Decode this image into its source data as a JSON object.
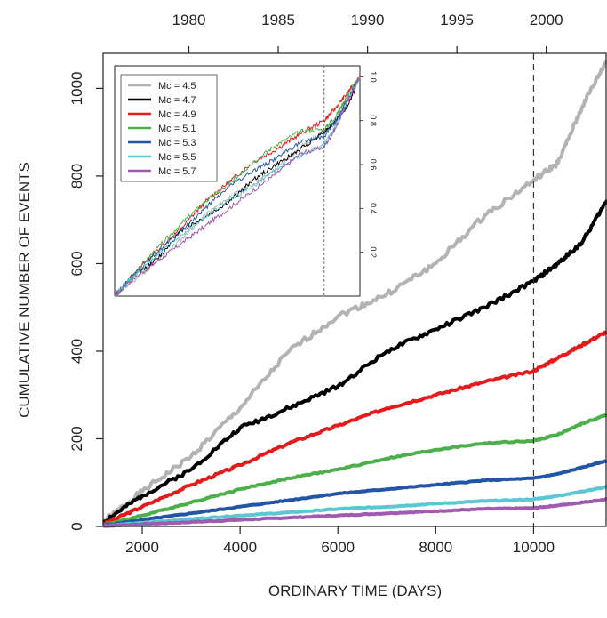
{
  "chart_data": {
    "type": "line",
    "title": "",
    "xlabel": "ORDINARY TIME (DAYS)",
    "ylabel": "CUMULATIVE NUMBER OF EVENTS",
    "xlim": [
      1200,
      11500
    ],
    "ylim": [
      0,
      1080
    ],
    "x_ticks": [
      2000,
      4000,
      6000,
      8000,
      10000
    ],
    "y_ticks": [
      0,
      200,
      400,
      600,
      800,
      1000
    ],
    "top_axis": {
      "xlim": [
        1975.2,
        2003.4
      ],
      "ticks": [
        1980,
        1985,
        1990,
        1995,
        2000
      ]
    },
    "reference_line_x": 10000,
    "legend_position": "inside inset, top-left",
    "series": [
      {
        "name": "Mc = 4.5",
        "color": "#b3b3b3",
        "x": [
          1200,
          2000,
          3000,
          4000,
          5000,
          6000,
          7000,
          8000,
          9000,
          10000,
          10500,
          11000,
          11500
        ],
        "values": [
          10,
          80,
          160,
          270,
          400,
          480,
          530,
          600,
          710,
          790,
          830,
          960,
          1065
        ]
      },
      {
        "name": "Mc = 4.7",
        "color": "#000000",
        "x": [
          1200,
          2000,
          3000,
          4000,
          5000,
          6000,
          7000,
          8000,
          9000,
          10000,
          10500,
          11000,
          11500
        ],
        "values": [
          10,
          70,
          130,
          225,
          270,
          320,
          400,
          450,
          500,
          560,
          600,
          650,
          745
        ]
      },
      {
        "name": "Mc = 4.9",
        "color": "#e41a1c",
        "x": [
          1200,
          2000,
          3000,
          4000,
          5000,
          6000,
          7000,
          8000,
          9000,
          10000,
          10500,
          11000,
          11500
        ],
        "values": [
          5,
          45,
          95,
          140,
          190,
          230,
          270,
          300,
          330,
          355,
          385,
          415,
          445
        ]
      },
      {
        "name": "Mc = 5.1",
        "color": "#4daf4a",
        "x": [
          1200,
          2000,
          3000,
          4000,
          5000,
          6000,
          7000,
          8000,
          9000,
          10000,
          10500,
          11000,
          11500
        ],
        "values": [
          3,
          25,
          55,
          85,
          110,
          130,
          155,
          175,
          190,
          195,
          210,
          235,
          255
        ]
      },
      {
        "name": "Mc = 5.3",
        "color": "#2355a6",
        "x": [
          1200,
          2000,
          3000,
          4000,
          5000,
          6000,
          7000,
          8000,
          9000,
          10000,
          10500,
          11000,
          11500
        ],
        "values": [
          2,
          15,
          30,
          45,
          60,
          75,
          85,
          95,
          105,
          110,
          120,
          135,
          150
        ]
      },
      {
        "name": "Mc = 5.5",
        "color": "#5bc7d2",
        "x": [
          1200,
          2000,
          3000,
          4000,
          5000,
          6000,
          7000,
          8000,
          9000,
          10000,
          10500,
          11000,
          11500
        ],
        "values": [
          1,
          8,
          17,
          25,
          32,
          40,
          45,
          52,
          58,
          62,
          70,
          80,
          90
        ]
      },
      {
        "name": "Mc = 5.7",
        "color": "#a05ab0",
        "x": [
          1200,
          2000,
          3000,
          4000,
          5000,
          6000,
          7000,
          8000,
          9000,
          10000,
          10500,
          11000,
          11500
        ],
        "values": [
          1,
          5,
          10,
          15,
          20,
          25,
          30,
          35,
          40,
          42,
          48,
          55,
          62
        ]
      }
    ],
    "inset": {
      "y_ticks": [
        0.2,
        0.4,
        0.6,
        0.8,
        1.0
      ],
      "y_tick_labels": [
        "0.2",
        "0.4",
        "0.6",
        "0.8",
        "1.0"
      ],
      "ylim": [
        0,
        1.05
      ],
      "reference_line_x": 10000,
      "series_normalized": [
        [
          0,
          0.07,
          0.16,
          0.26,
          0.37,
          0.45,
          0.51,
          0.58,
          0.68,
          0.75,
          0.79,
          0.91,
          1.0
        ],
        [
          0,
          0.09,
          0.17,
          0.3,
          0.36,
          0.43,
          0.53,
          0.6,
          0.67,
          0.75,
          0.8,
          0.87,
          1.0
        ],
        [
          0,
          0.1,
          0.21,
          0.31,
          0.43,
          0.52,
          0.61,
          0.67,
          0.74,
          0.8,
          0.86,
          0.93,
          1.0
        ],
        [
          0,
          0.1,
          0.22,
          0.33,
          0.43,
          0.51,
          0.61,
          0.69,
          0.75,
          0.76,
          0.82,
          0.92,
          1.0
        ],
        [
          0,
          0.1,
          0.2,
          0.3,
          0.4,
          0.5,
          0.57,
          0.63,
          0.7,
          0.73,
          0.8,
          0.9,
          1.0
        ],
        [
          0,
          0.09,
          0.19,
          0.28,
          0.36,
          0.44,
          0.5,
          0.58,
          0.64,
          0.69,
          0.78,
          0.89,
          1.0
        ],
        [
          0,
          0.08,
          0.16,
          0.24,
          0.32,
          0.4,
          0.48,
          0.56,
          0.65,
          0.68,
          0.77,
          0.89,
          1.0
        ]
      ]
    }
  }
}
